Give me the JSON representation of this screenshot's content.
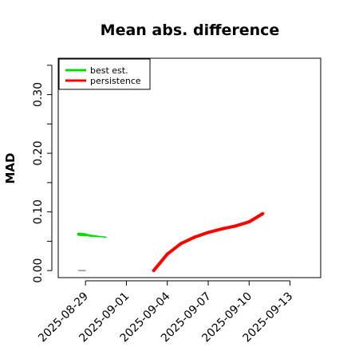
{
  "chart_data": {
    "type": "line",
    "title": "Mean abs. difference",
    "xlabel": "",
    "ylabel": "MAD",
    "xlim": [
      "2025-08-27T00:00",
      "2025-09-15T06:00"
    ],
    "ylim": [
      -0.012,
      0.362
    ],
    "x_ticks": [
      "2025-08-29",
      "2025-09-01",
      "2025-09-04",
      "2025-09-07",
      "2025-09-10",
      "2025-09-13"
    ],
    "y_ticks": [
      0.0,
      0.05,
      0.1,
      0.15,
      0.2,
      0.25,
      0.3,
      0.35
    ],
    "y_tick_labels": [
      "0.00",
      "",
      "0.10",
      "",
      "0.20",
      "",
      "0.30",
      ""
    ],
    "legend": {
      "position": "top-left",
      "entries": [
        {
          "label": "best est.",
          "color": "#00dd00"
        },
        {
          "label": "persistence",
          "color": "#ff0000"
        }
      ]
    },
    "series": [
      {
        "name": "best est.",
        "color": "#00dd00",
        "points": [
          {
            "x": "2025-08-28T12:00",
            "y": 0.062,
            "w": 4
          },
          {
            "x": "2025-08-29T00:00",
            "y": 0.061,
            "w": 3
          },
          {
            "x": "2025-08-29T12:00",
            "y": 0.059,
            "w": 2
          },
          {
            "x": "2025-08-30T00:00",
            "y": 0.058,
            "w": 1.5
          },
          {
            "x": "2025-08-30T12:00",
            "y": 0.057,
            "w": 1
          }
        ]
      },
      {
        "name": "persistence",
        "color": "#ff0000",
        "points": [
          {
            "x": "2025-09-03T00:00",
            "y": 0.0,
            "w": 4
          },
          {
            "x": "2025-09-04T00:00",
            "y": 0.028,
            "w": 4
          },
          {
            "x": "2025-09-05T00:00",
            "y": 0.046,
            "w": 4
          },
          {
            "x": "2025-09-06T00:00",
            "y": 0.057,
            "w": 4
          },
          {
            "x": "2025-09-07T00:00",
            "y": 0.065,
            "w": 4
          },
          {
            "x": "2025-09-08T00:00",
            "y": 0.071,
            "w": 4
          },
          {
            "x": "2025-09-09T00:00",
            "y": 0.076,
            "w": 4
          },
          {
            "x": "2025-09-10T00:00",
            "y": 0.083,
            "w": 4
          },
          {
            "x": "2025-09-11T00:00",
            "y": 0.097,
            "w": 4
          }
        ]
      },
      {
        "name": "",
        "color": "#555555",
        "points": [
          {
            "x": "2025-08-28T12:00",
            "y": 0.0,
            "w": 1
          },
          {
            "x": "2025-08-29T00:00",
            "y": 0.0,
            "w": 1
          }
        ]
      }
    ],
    "grid": false
  }
}
